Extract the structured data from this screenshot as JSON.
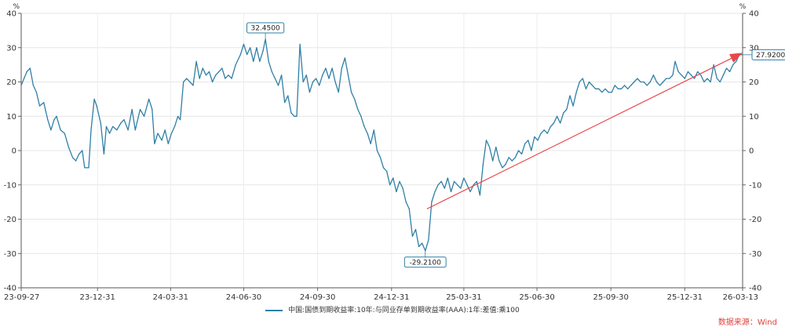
{
  "chart_data": {
    "type": "line",
    "unit_left": "%",
    "unit_right": "%",
    "x_tick_labels": [
      "23-09-27",
      "23-12-31",
      "24-03-31",
      "24-06-30",
      "24-09-30",
      "24-12-31",
      "25-03-31",
      "25-06-30",
      "25-09-30",
      "25-12-31",
      "26-03-13"
    ],
    "x_tick_dates": [
      "2023-09-27",
      "2023-12-31",
      "2024-03-31",
      "2024-06-30",
      "2024-09-30",
      "2024-12-31",
      "2025-03-31",
      "2025-06-30",
      "2025-09-30",
      "2025-12-31",
      "2026-03-13"
    ],
    "y_ticks": [
      -40,
      -30,
      -20,
      -10,
      0,
      10,
      20,
      30,
      40
    ],
    "ylim": [
      -40,
      40
    ],
    "grid": true,
    "series": [
      {
        "name": "中国:国债到期收益率:10年:与同业存单到期收益率(AAA):1年:差值:乘100",
        "color": "#2f7fa6",
        "points": [
          [
            "2023-09-27",
            19
          ],
          [
            "2023-10-04",
            23
          ],
          [
            "2023-10-08",
            24
          ],
          [
            "2023-10-12",
            19
          ],
          [
            "2023-10-16",
            17
          ],
          [
            "2023-10-20",
            13
          ],
          [
            "2023-10-25",
            14
          ],
          [
            "2023-10-30",
            9
          ],
          [
            "2023-11-03",
            6
          ],
          [
            "2023-11-07",
            9
          ],
          [
            "2023-11-10",
            10
          ],
          [
            "2023-11-15",
            6
          ],
          [
            "2023-11-20",
            5
          ],
          [
            "2023-11-25",
            1
          ],
          [
            "2023-11-30",
            -2
          ],
          [
            "2023-12-04",
            -3
          ],
          [
            "2023-12-08",
            -1
          ],
          [
            "2023-12-12",
            0
          ],
          [
            "2023-12-15",
            -5
          ],
          [
            "2023-12-20",
            -5
          ],
          [
            "2023-12-23",
            6
          ],
          [
            "2023-12-27",
            15
          ],
          [
            "2023-12-30",
            13
          ],
          [
            "2024-01-04",
            8
          ],
          [
            "2024-01-08",
            -1
          ],
          [
            "2024-01-11",
            7
          ],
          [
            "2024-01-15",
            5
          ],
          [
            "2024-01-19",
            7
          ],
          [
            "2024-01-24",
            6
          ],
          [
            "2024-01-29",
            8
          ],
          [
            "2024-02-02",
            9
          ],
          [
            "2024-02-07",
            6
          ],
          [
            "2024-02-12",
            12
          ],
          [
            "2024-02-16",
            6
          ],
          [
            "2024-02-22",
            12
          ],
          [
            "2024-02-27",
            10
          ],
          [
            "2024-03-04",
            15
          ],
          [
            "2024-03-08",
            12
          ],
          [
            "2024-03-11",
            2
          ],
          [
            "2024-03-15",
            5
          ],
          [
            "2024-03-20",
            3
          ],
          [
            "2024-03-24",
            6
          ],
          [
            "2024-03-28",
            2
          ],
          [
            "2024-04-01",
            5
          ],
          [
            "2024-04-05",
            7
          ],
          [
            "2024-04-09",
            10
          ],
          [
            "2024-04-12",
            9
          ],
          [
            "2024-04-16",
            20
          ],
          [
            "2024-04-20",
            21
          ],
          [
            "2024-04-24",
            20
          ],
          [
            "2024-04-28",
            19
          ],
          [
            "2024-05-02",
            26
          ],
          [
            "2024-05-06",
            21
          ],
          [
            "2024-05-10",
            24
          ],
          [
            "2024-05-14",
            22
          ],
          [
            "2024-05-18",
            23
          ],
          [
            "2024-05-22",
            20
          ],
          [
            "2024-05-26",
            22
          ],
          [
            "2024-05-30",
            23
          ],
          [
            "2024-06-03",
            24
          ],
          [
            "2024-06-07",
            21
          ],
          [
            "2024-06-11",
            22
          ],
          [
            "2024-06-15",
            21
          ],
          [
            "2024-06-20",
            25
          ],
          [
            "2024-06-26",
            28
          ],
          [
            "2024-06-30",
            31
          ],
          [
            "2024-07-04",
            28
          ],
          [
            "2024-07-08",
            30
          ],
          [
            "2024-07-12",
            26
          ],
          [
            "2024-07-16",
            30
          ],
          [
            "2024-07-20",
            26
          ],
          [
            "2024-07-24",
            29
          ],
          [
            "2024-07-27",
            32.45
          ],
          [
            "2024-07-31",
            26
          ],
          [
            "2024-08-04",
            23
          ],
          [
            "2024-08-08",
            21
          ],
          [
            "2024-08-12",
            19
          ],
          [
            "2024-08-16",
            22
          ],
          [
            "2024-08-20",
            14
          ],
          [
            "2024-08-24",
            16
          ],
          [
            "2024-08-28",
            11
          ],
          [
            "2024-09-01",
            10
          ],
          [
            "2024-09-04",
            10
          ],
          [
            "2024-09-08",
            31
          ],
          [
            "2024-09-12",
            20
          ],
          [
            "2024-09-16",
            22
          ],
          [
            "2024-09-20",
            17
          ],
          [
            "2024-09-24",
            20
          ],
          [
            "2024-09-28",
            21
          ],
          [
            "2024-10-02",
            19
          ],
          [
            "2024-10-06",
            22
          ],
          [
            "2024-10-10",
            24
          ],
          [
            "2024-10-14",
            21
          ],
          [
            "2024-10-18",
            24
          ],
          [
            "2024-10-22",
            20
          ],
          [
            "2024-10-26",
            17
          ],
          [
            "2024-10-30",
            24
          ],
          [
            "2024-11-03",
            27
          ],
          [
            "2024-11-07",
            22
          ],
          [
            "2024-11-11",
            17
          ],
          [
            "2024-11-15",
            15
          ],
          [
            "2024-11-19",
            12
          ],
          [
            "2024-11-23",
            10
          ],
          [
            "2024-11-27",
            7
          ],
          [
            "2024-12-01",
            5
          ],
          [
            "2024-12-05",
            2
          ],
          [
            "2024-12-09",
            6
          ],
          [
            "2024-12-13",
            0
          ],
          [
            "2024-12-17",
            -2
          ],
          [
            "2024-12-21",
            -5
          ],
          [
            "2024-12-25",
            -6
          ],
          [
            "2024-12-29",
            -10
          ],
          [
            "2025-01-02",
            -8
          ],
          [
            "2025-01-06",
            -12
          ],
          [
            "2025-01-10",
            -9
          ],
          [
            "2025-01-14",
            -11
          ],
          [
            "2025-01-18",
            -15
          ],
          [
            "2025-01-22",
            -17
          ],
          [
            "2025-01-26",
            -25
          ],
          [
            "2025-01-30",
            -23
          ],
          [
            "2025-02-03",
            -28
          ],
          [
            "2025-02-07",
            -27
          ],
          [
            "2025-02-11",
            -29.21
          ],
          [
            "2025-02-15",
            -26
          ],
          [
            "2025-02-19",
            -15
          ],
          [
            "2025-02-23",
            -12
          ],
          [
            "2025-02-27",
            -10
          ],
          [
            "2025-03-03",
            -9
          ],
          [
            "2025-03-07",
            -11
          ],
          [
            "2025-03-11",
            -8
          ],
          [
            "2025-03-15",
            -12
          ],
          [
            "2025-03-19",
            -9
          ],
          [
            "2025-03-23",
            -10
          ],
          [
            "2025-03-27",
            -11
          ],
          [
            "2025-03-31",
            -8
          ],
          [
            "2025-04-04",
            -10
          ],
          [
            "2025-04-08",
            -12
          ],
          [
            "2025-04-12",
            -10
          ],
          [
            "2025-04-16",
            -9
          ],
          [
            "2025-04-20",
            -13
          ],
          [
            "2025-04-24",
            -4
          ],
          [
            "2025-04-28",
            3
          ],
          [
            "2025-05-02",
            1
          ],
          [
            "2025-05-06",
            -3
          ],
          [
            "2025-05-10",
            1
          ],
          [
            "2025-05-14",
            -3
          ],
          [
            "2025-05-18",
            -5
          ],
          [
            "2025-05-22",
            -4
          ],
          [
            "2025-05-26",
            -2
          ],
          [
            "2025-05-30",
            -3
          ],
          [
            "2025-06-03",
            -2
          ],
          [
            "2025-06-07",
            0
          ],
          [
            "2025-06-11",
            -1
          ],
          [
            "2025-06-15",
            2
          ],
          [
            "2025-06-19",
            3
          ],
          [
            "2025-06-23",
            0
          ],
          [
            "2025-06-27",
            4
          ],
          [
            "2025-07-01",
            3
          ],
          [
            "2025-07-05",
            5
          ],
          [
            "2025-07-09",
            6
          ],
          [
            "2025-07-13",
            5
          ],
          [
            "2025-07-17",
            7
          ],
          [
            "2025-07-21",
            8
          ],
          [
            "2025-07-25",
            10
          ],
          [
            "2025-07-29",
            8
          ],
          [
            "2025-08-02",
            11
          ],
          [
            "2025-08-06",
            12
          ],
          [
            "2025-08-10",
            16
          ],
          [
            "2025-08-14",
            13
          ],
          [
            "2025-08-18",
            17
          ],
          [
            "2025-08-22",
            20
          ],
          [
            "2025-08-26",
            21
          ],
          [
            "2025-08-30",
            18
          ],
          [
            "2025-09-03",
            20
          ],
          [
            "2025-09-07",
            19
          ],
          [
            "2025-09-11",
            18
          ],
          [
            "2025-09-15",
            18
          ],
          [
            "2025-09-19",
            17
          ],
          [
            "2025-09-23",
            18
          ],
          [
            "2025-09-27",
            17
          ],
          [
            "2025-10-01",
            17
          ],
          [
            "2025-10-05",
            19
          ],
          [
            "2025-10-09",
            18
          ],
          [
            "2025-10-13",
            18
          ],
          [
            "2025-10-17",
            19
          ],
          [
            "2025-10-21",
            18
          ],
          [
            "2025-10-25",
            19
          ],
          [
            "2025-10-29",
            20
          ],
          [
            "2025-11-02",
            21
          ],
          [
            "2025-11-06",
            20
          ],
          [
            "2025-11-10",
            20
          ],
          [
            "2025-11-14",
            19
          ],
          [
            "2025-11-18",
            20
          ],
          [
            "2025-11-22",
            22
          ],
          [
            "2025-11-26",
            20
          ],
          [
            "2025-11-30",
            19
          ],
          [
            "2025-12-04",
            20
          ],
          [
            "2025-12-08",
            21
          ],
          [
            "2025-12-12",
            21
          ],
          [
            "2025-12-16",
            22
          ],
          [
            "2025-12-19",
            26
          ],
          [
            "2025-12-23",
            23
          ],
          [
            "2025-12-27",
            22
          ],
          [
            "2025-12-31",
            21
          ],
          [
            "2026-01-04",
            23
          ],
          [
            "2026-01-08",
            22
          ],
          [
            "2026-01-12",
            21
          ],
          [
            "2026-01-16",
            23
          ],
          [
            "2026-01-20",
            22
          ],
          [
            "2026-01-24",
            20
          ],
          [
            "2026-01-28",
            21
          ],
          [
            "2026-02-01",
            20
          ],
          [
            "2026-02-05",
            25
          ],
          [
            "2026-02-09",
            21
          ],
          [
            "2026-02-13",
            20
          ],
          [
            "2026-02-17",
            22
          ],
          [
            "2026-02-21",
            24
          ],
          [
            "2026-02-25",
            23
          ],
          [
            "2026-03-01",
            25
          ],
          [
            "2026-03-05",
            26
          ],
          [
            "2026-03-09",
            28
          ],
          [
            "2026-03-13",
            27.92
          ]
        ]
      }
    ],
    "annotations": [
      {
        "label": "32.4500",
        "date": "2024-07-27",
        "value": 32.45,
        "box_side": "above"
      },
      {
        "label": "-29.2100",
        "date": "2025-02-11",
        "value": -29.21,
        "box_side": "below"
      },
      {
        "label": "27.9200",
        "date": "2026-03-13",
        "value": 27.92,
        "box_side": "right"
      }
    ],
    "trend_arrow": {
      "from": [
        "2025-02-13",
        -17
      ],
      "to": [
        "2026-03-13",
        28.5
      ],
      "color": "#e8464a"
    },
    "source": "数据来源：Wind"
  }
}
